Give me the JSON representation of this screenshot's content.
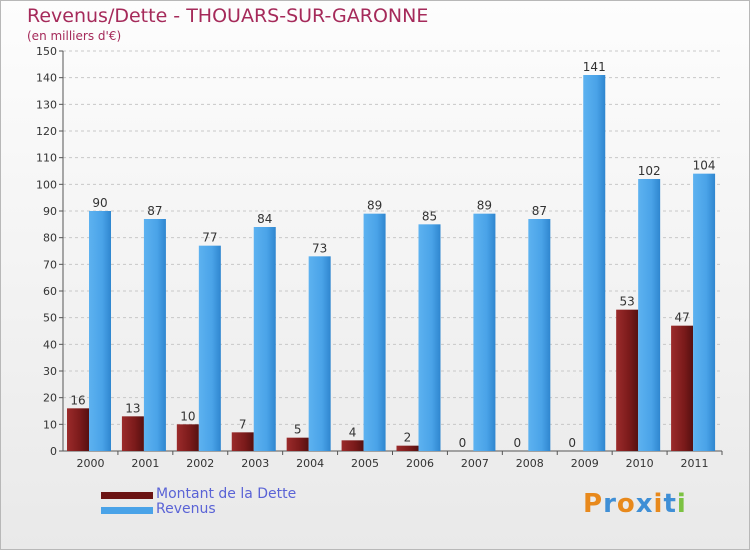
{
  "title": "Revenus/Dette - THOUARS-SUR-GARONNE",
  "subtitle": "(en milliers d'€)",
  "logo_text": "Proxiti",
  "colors": {
    "dette": "#7a1a1a",
    "revenus": "#4aa3e8",
    "title": "#a52a5a",
    "legend_text": "#5a63d6"
  },
  "legend": {
    "dette_label": "Montant de la Dette",
    "revenus_label": "Revenus"
  },
  "chart_data": {
    "type": "bar",
    "title": "Revenus/Dette - THOUARS-SUR-GARONNE",
    "subtitle": "(en milliers d'€)",
    "categories": [
      "2000",
      "2001",
      "2002",
      "2003",
      "2004",
      "2005",
      "2006",
      "2007",
      "2008",
      "2009",
      "2010",
      "2011"
    ],
    "series": [
      {
        "name": "Montant de la Dette",
        "values": [
          16,
          13,
          10,
          7,
          5,
          4,
          2,
          0,
          0,
          0,
          53,
          47
        ]
      },
      {
        "name": "Revenus",
        "values": [
          90,
          87,
          77,
          84,
          73,
          89,
          85,
          89,
          87,
          141,
          102,
          104
        ]
      }
    ],
    "ylim": [
      0,
      150
    ],
    "yticks": [
      0,
      10,
      20,
      30,
      40,
      50,
      60,
      70,
      80,
      90,
      100,
      110,
      120,
      130,
      140,
      150
    ],
    "grid": true,
    "legend_position": "bottom-left"
  }
}
